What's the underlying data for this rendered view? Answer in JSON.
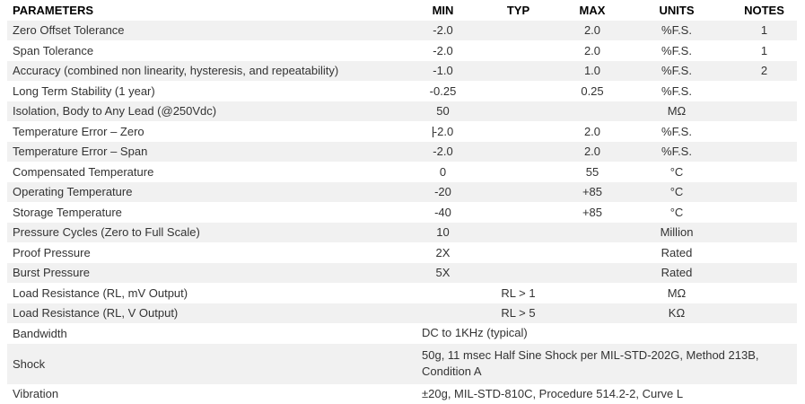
{
  "colors": {
    "stripe": "#f1f1f1",
    "body_text": "#333333",
    "header_text": "#000000",
    "background": "#ffffff"
  },
  "table": {
    "columns": [
      "PARAMETERS",
      "MIN",
      "TYP",
      "MAX",
      "UNITS",
      "NOTES"
    ],
    "rows": [
      {
        "param": "Zero Offset Tolerance",
        "min": "-2.0",
        "typ": "",
        "max": "2.0",
        "units": "%F.S.",
        "notes": "1",
        "shaded": true
      },
      {
        "param": "Span Tolerance",
        "min": "-2.0",
        "typ": "",
        "max": "2.0",
        "units": "%F.S.",
        "notes": "1",
        "shaded": false
      },
      {
        "param": "Accuracy (combined non linearity, hysteresis, and repeatability)",
        "min": "-1.0",
        "typ": "",
        "max": "1.0",
        "units": "%F.S.",
        "notes": "2",
        "shaded": true
      },
      {
        "param": "Long Term Stability (1 year)",
        "min": "-0.25",
        "typ": "",
        "max": "0.25",
        "units": "%F.S.",
        "notes": "",
        "shaded": false
      },
      {
        "param": "Isolation, Body to Any Lead (@250Vdc)",
        "min": "50",
        "typ": "",
        "max": "",
        "units": "MΩ",
        "notes": "",
        "shaded": true
      },
      {
        "param": "Temperature Error – Zero",
        "min": "-2.0",
        "typ": "",
        "max": "2.0",
        "units": "%F.S.",
        "notes": "",
        "shaded": false,
        "caret": true
      },
      {
        "param": "Temperature Error – Span",
        "min": "-2.0",
        "typ": "",
        "max": "2.0",
        "units": "%F.S.",
        "notes": "",
        "shaded": true
      },
      {
        "param": "Compensated Temperature",
        "min": "0",
        "typ": "",
        "max": "55",
        "units": "°C",
        "notes": "",
        "shaded": false
      },
      {
        "param": "Operating Temperature",
        "min": "-20",
        "typ": "",
        "max": "+85",
        "units": "°C",
        "notes": "",
        "shaded": true
      },
      {
        "param": "Storage Temperature",
        "min": "-40",
        "typ": "",
        "max": "+85",
        "units": "°C",
        "notes": "",
        "shaded": false
      },
      {
        "param": "Pressure Cycles (Zero to Full Scale)",
        "min": "10",
        "typ": "",
        "max": "",
        "units": "Million",
        "notes": "",
        "shaded": true
      },
      {
        "param": "Proof Pressure",
        "min": "2X",
        "typ": "",
        "max": "",
        "units": "Rated",
        "notes": "",
        "shaded": false
      },
      {
        "param": "Burst Pressure",
        "min": "5X",
        "typ": "",
        "max": "",
        "units": "Rated",
        "notes": "",
        "shaded": true
      },
      {
        "param": "Load Resistance (RL, mV Output)",
        "min": "",
        "typ": "RL > 1",
        "max": "",
        "units": "MΩ",
        "notes": "",
        "shaded": false
      },
      {
        "param": "Load Resistance (RL, V Output)",
        "min": "",
        "typ": "RL > 5",
        "max": "",
        "units": "KΩ",
        "notes": "",
        "shaded": true
      },
      {
        "param": "Bandwidth",
        "span_text": "DC to 1KHz (typical)",
        "shaded": false
      },
      {
        "param": "Shock",
        "span_text": "50g, 11 msec Half Sine Shock per MIL-STD-202G, Method 213B,\nCondition A",
        "shaded": true,
        "tall": true
      },
      {
        "param": "Vibration",
        "span_text": "±20g, MIL-STD-810C, Procedure 514.2-2, Curve L",
        "shaded": false
      }
    ]
  }
}
